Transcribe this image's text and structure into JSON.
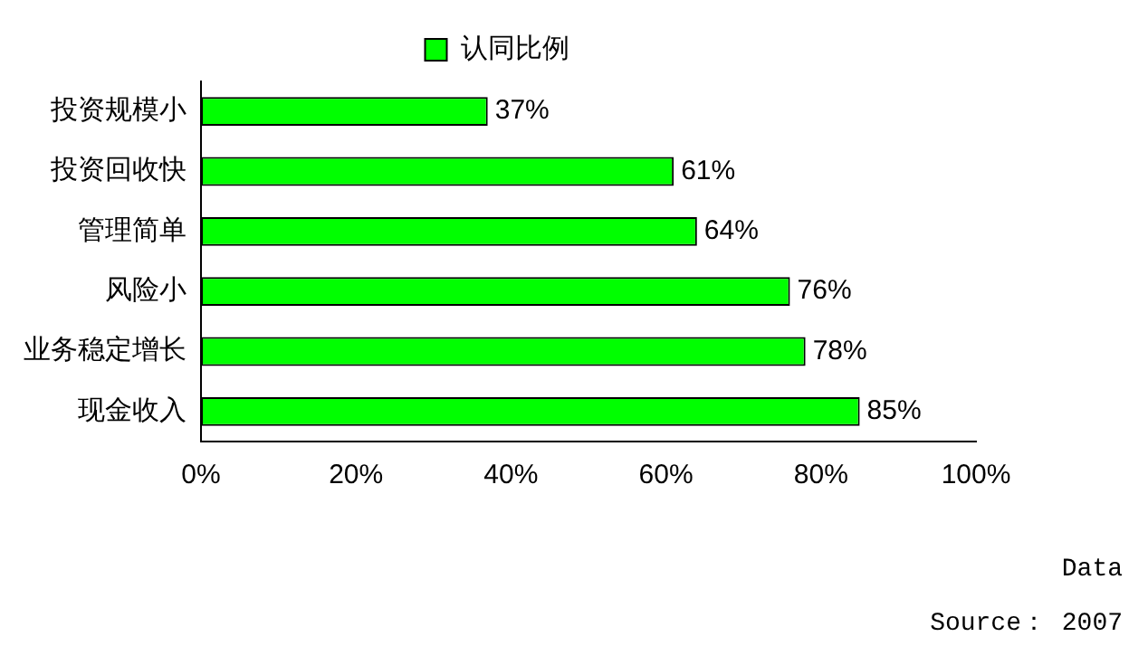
{
  "chart_data": {
    "type": "bar",
    "orientation": "horizontal",
    "legend": "top",
    "categories": [
      "投资规模小",
      "投资回收快",
      "管理简单",
      "风险小",
      "业务稳定增长",
      "现金收入"
    ],
    "series": [
      {
        "name": "认同比例",
        "color": "#00ff00",
        "values": [
          37,
          61,
          64,
          76,
          78,
          85
        ],
        "value_labels": [
          "37%",
          "61%",
          "64%",
          "76%",
          "78%",
          "85%"
        ]
      }
    ],
    "xlim": [
      0,
      100
    ],
    "xticks": [
      {
        "value": 0,
        "label": "0%"
      },
      {
        "value": 20,
        "label": "20%"
      },
      {
        "value": 40,
        "label": "40%"
      },
      {
        "value": 60,
        "label": "60%"
      },
      {
        "value": 80,
        "label": "80%"
      },
      {
        "value": 100,
        "label": "100%"
      }
    ],
    "grid": false,
    "annotations": [
      "Data",
      "Source： 2007"
    ]
  }
}
